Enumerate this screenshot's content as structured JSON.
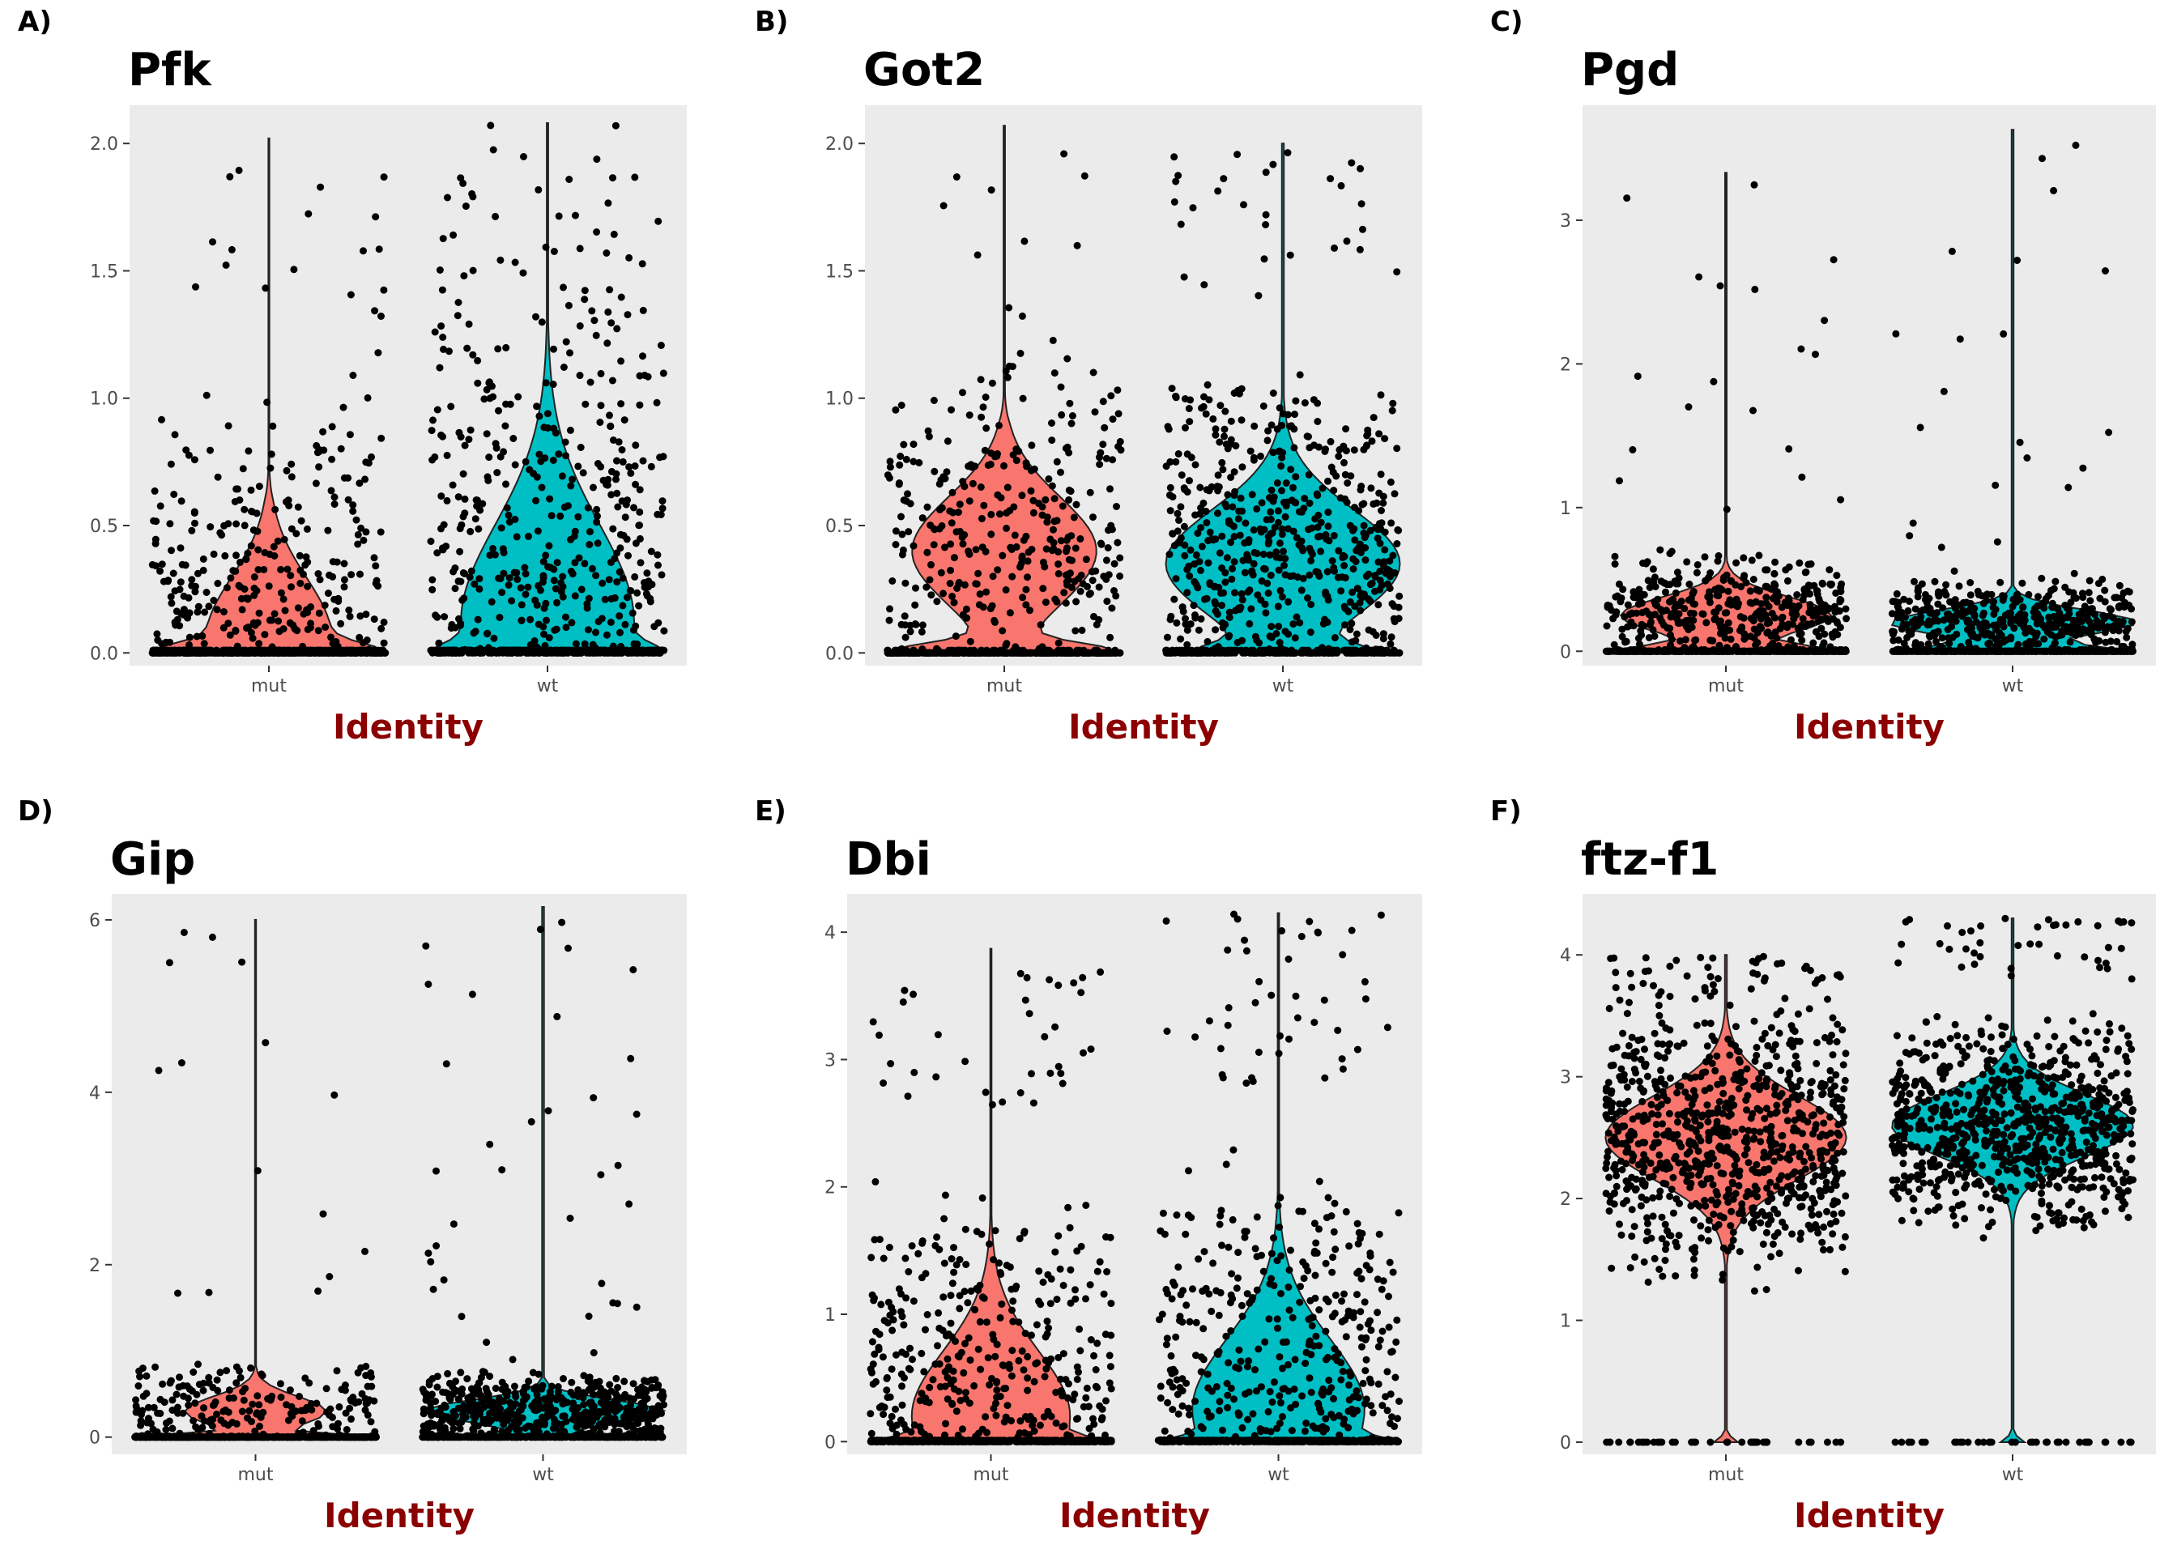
{
  "chart_data": [
    {
      "type": "violin",
      "panel_label": "A)",
      "title": "Pfk",
      "xlabel": "Identity",
      "ylabel": "",
      "categories": [
        "mut",
        "wt"
      ],
      "ylim": [
        -0.05,
        2.15
      ],
      "yticks": [
        0.0,
        0.5,
        1.0,
        1.5,
        2.0
      ],
      "ytick_labels": [
        "0.0",
        "0.5",
        "1.0",
        "1.5",
        "2.0"
      ],
      "colors": {
        "mut": "#f8766d",
        "wt": "#00bfc4"
      },
      "series": [
        {
          "name": "mut",
          "max": 2.02,
          "zero_fraction": 0.45,
          "dist": {
            "peak": 0.06,
            "spread": 0.55,
            "bulk": 0.6
          }
        },
        {
          "name": "wt",
          "max": 2.08,
          "zero_fraction": 0.2,
          "dist": {
            "peak": 0.12,
            "spread": 0.9,
            "bulk": 1.3
          }
        }
      ]
    },
    {
      "type": "violin",
      "panel_label": "B)",
      "title": "Got2",
      "xlabel": "Identity",
      "ylabel": "",
      "categories": [
        "mut",
        "wt"
      ],
      "ylim": [
        -0.05,
        2.15
      ],
      "yticks": [
        0.0,
        0.5,
        1.0,
        1.5,
        2.0
      ],
      "ytick_labels": [
        "0.0",
        "0.5",
        "1.0",
        "1.5",
        "2.0"
      ],
      "colors": {
        "mut": "#f8766d",
        "wt": "#00bfc4"
      },
      "series": [
        {
          "name": "mut",
          "max": 2.07,
          "zero_fraction": 0.55,
          "dist": {
            "peak": 0.4,
            "spread": 0.5,
            "bulk": 0.9
          }
        },
        {
          "name": "wt",
          "max": 2.0,
          "zero_fraction": 0.25,
          "dist": {
            "peak": 0.35,
            "spread": 0.5,
            "bulk": 1.4
          }
        }
      ]
    },
    {
      "type": "violin",
      "panel_label": "C)",
      "title": "Pgd",
      "xlabel": "Identity",
      "ylabel": "",
      "categories": [
        "mut",
        "wt"
      ],
      "ylim": [
        -0.1,
        3.8
      ],
      "yticks": [
        0,
        1,
        2,
        3
      ],
      "ytick_labels": [
        "0",
        "1",
        "2",
        "3"
      ],
      "colors": {
        "mut": "#f8766d",
        "wt": "#00bfc4"
      },
      "series": [
        {
          "name": "mut",
          "max": 3.33,
          "zero_fraction": 0.5,
          "dist": {
            "peak": 0.25,
            "spread": 0.3,
            "bulk": 0.6
          }
        },
        {
          "name": "wt",
          "max": 3.63,
          "zero_fraction": 0.45,
          "dist": {
            "peak": 0.2,
            "spread": 0.2,
            "bulk": 0.4
          }
        }
      ]
    },
    {
      "type": "violin",
      "panel_label": "D)",
      "title": "Gip",
      "xlabel": "Identity",
      "ylabel": "",
      "categories": [
        "mut",
        "wt"
      ],
      "ylim": [
        -0.2,
        6.3
      ],
      "yticks": [
        0,
        2,
        4,
        6
      ],
      "ytick_labels": [
        "0",
        "2",
        "4",
        "6"
      ],
      "colors": {
        "mut": "#f8766d",
        "wt": "#00bfc4"
      },
      "series": [
        {
          "name": "mut",
          "max": 6.0,
          "zero_fraction": 0.75,
          "dist": {
            "peak": 0.3,
            "spread": 0.4,
            "bulk": 1.0
          }
        },
        {
          "name": "wt",
          "max": 6.15,
          "zero_fraction": 0.35,
          "dist": {
            "peak": 0.3,
            "spread": 0.3,
            "bulk": 0.9
          }
        }
      ]
    },
    {
      "type": "violin",
      "panel_label": "E)",
      "title": "Dbi",
      "xlabel": "Identity",
      "ylabel": "",
      "categories": [
        "mut",
        "wt"
      ],
      "ylim": [
        -0.1,
        4.3
      ],
      "yticks": [
        0,
        1,
        2,
        3,
        4
      ],
      "ytick_labels": [
        "0",
        "1",
        "2",
        "3",
        "4"
      ],
      "colors": {
        "mut": "#f8766d",
        "wt": "#00bfc4"
      },
      "series": [
        {
          "name": "mut",
          "max": 3.87,
          "zero_fraction": 0.3,
          "dist": {
            "peak": 0.2,
            "spread": 1.2,
            "bulk": 2.6
          }
        },
        {
          "name": "wt",
          "max": 4.15,
          "zero_fraction": 0.25,
          "dist": {
            "peak": 0.25,
            "spread": 1.3,
            "bulk": 2.8
          }
        }
      ]
    },
    {
      "type": "violin",
      "panel_label": "F)",
      "title": "ftz-f1",
      "xlabel": "Identity",
      "ylabel": "",
      "categories": [
        "mut",
        "wt"
      ],
      "ylim": [
        -0.1,
        4.5
      ],
      "yticks": [
        0,
        1,
        2,
        3,
        4
      ],
      "ytick_labels": [
        "0",
        "1",
        "2",
        "3",
        "4"
      ],
      "colors": {
        "mut": "#f8766d",
        "wt": "#00bfc4"
      },
      "series": [
        {
          "name": "mut",
          "max": 4.0,
          "zero_fraction": 0.05,
          "dist": {
            "peak": 2.5,
            "spread": 0.8,
            "bulk": 3.6
          }
        },
        {
          "name": "wt",
          "max": 4.3,
          "zero_fraction": 0.05,
          "dist": {
            "peak": 2.6,
            "spread": 0.6,
            "bulk": 3.8
          }
        }
      ]
    }
  ]
}
